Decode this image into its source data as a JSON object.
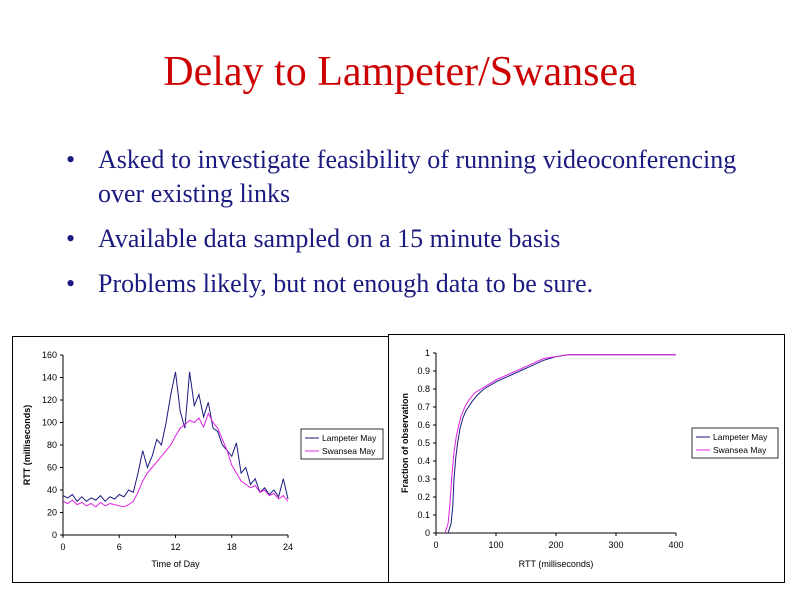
{
  "slide": {
    "title": "Delay to Lampeter/Swansea",
    "bullets": [
      "Asked to investigate feasibility of running videoconferencing over existing links",
      "Available data sampled on a 15 minute basis",
      "Problems likely, but not enough data to be sure."
    ],
    "bullet_symbol": "•"
  },
  "colors": {
    "title": "#cc0000",
    "text": "#1a1a80",
    "lampeter": "#1a1a80",
    "swansea": "#e020e0"
  },
  "chart_data": [
    {
      "type": "line",
      "title": "",
      "xlabel": "Time of Day",
      "ylabel": "RTT (milliseconds)",
      "xlim": [
        0,
        24
      ],
      "ylim": [
        0,
        160
      ],
      "xticks": [
        0,
        6,
        12,
        18,
        24
      ],
      "xtick_labels": [
        "0",
        "6",
        "12",
        "18",
        "24"
      ],
      "yticks": [
        0,
        20,
        40,
        60,
        80,
        100,
        120,
        140,
        160
      ],
      "ytick_labels": [
        "0",
        "20",
        "40",
        "60",
        "80",
        "100",
        "120",
        "140",
        "160"
      ],
      "grid": false,
      "legend": "right",
      "series": [
        {
          "name": "Lampeter May",
          "color": "#1a1a80",
          "x": [
            0,
            0.5,
            1,
            1.5,
            2,
            2.5,
            3,
            3.5,
            4,
            4.5,
            5,
            5.5,
            6,
            6.5,
            7,
            7.5,
            8,
            8.5,
            9,
            9.5,
            10,
            10.5,
            11,
            11.5,
            12,
            12.5,
            13,
            13.5,
            14,
            14.5,
            15,
            15.5,
            16,
            16.5,
            17,
            17.5,
            18,
            18.5,
            19,
            19.5,
            20,
            20.5,
            21,
            21.5,
            22,
            22.5,
            23,
            23.5,
            24
          ],
          "values": [
            35,
            33,
            36,
            30,
            34,
            30,
            33,
            31,
            35,
            30,
            34,
            32,
            36,
            34,
            40,
            38,
            55,
            75,
            60,
            70,
            85,
            80,
            100,
            125,
            145,
            110,
            95,
            145,
            115,
            125,
            105,
            118,
            95,
            92,
            80,
            75,
            70,
            82,
            55,
            60,
            45,
            50,
            38,
            42,
            36,
            40,
            34,
            50,
            32
          ]
        },
        {
          "name": "Swansea May",
          "color": "#e020e0",
          "x": [
            0,
            0.5,
            1,
            1.5,
            2,
            2.5,
            3,
            3.5,
            4,
            4.5,
            5,
            5.5,
            6,
            6.5,
            7,
            7.5,
            8,
            8.5,
            9,
            9.5,
            10,
            10.5,
            11,
            11.5,
            12,
            12.5,
            13,
            13.5,
            14,
            14.5,
            15,
            15.5,
            16,
            16.5,
            17,
            17.5,
            18,
            18.5,
            19,
            19.5,
            20,
            20.5,
            21,
            21.5,
            22,
            22.5,
            23,
            23.5,
            24
          ],
          "values": [
            30,
            28,
            31,
            27,
            29,
            26,
            28,
            25,
            29,
            26,
            28,
            27,
            26,
            25,
            27,
            30,
            38,
            48,
            55,
            60,
            65,
            70,
            75,
            80,
            88,
            95,
            98,
            102,
            100,
            104,
            96,
            108,
            100,
            95,
            85,
            75,
            62,
            55,
            48,
            45,
            42,
            44,
            38,
            40,
            35,
            37,
            32,
            35,
            30
          ]
        }
      ]
    },
    {
      "type": "line",
      "title": "",
      "xlabel": "RTT (milliseconds)",
      "ylabel": "Fraction of observation",
      "xlim": [
        0,
        400
      ],
      "ylim": [
        0,
        1
      ],
      "xticks": [
        0,
        100,
        200,
        300,
        400
      ],
      "xtick_labels": [
        "0",
        "100",
        "200",
        "300",
        "400"
      ],
      "yticks": [
        0,
        0.1,
        0.2,
        0.3,
        0.4,
        0.5,
        0.6,
        0.7,
        0.8,
        0.9,
        1
      ],
      "ytick_labels": [
        "0",
        "0.1",
        "0.2",
        "0.3",
        "0.4",
        "0.5",
        "0.6",
        "0.7",
        "0.8",
        "0.9",
        "1"
      ],
      "grid": false,
      "legend": "right",
      "series": [
        {
          "name": "Lampeter May",
          "color": "#1a1a80",
          "x": [
            20,
            25,
            28,
            30,
            33,
            36,
            40,
            45,
            50,
            60,
            70,
            80,
            100,
            120,
            140,
            160,
            180,
            200,
            220,
            240,
            260,
            300,
            400
          ],
          "values": [
            0,
            0.05,
            0.15,
            0.3,
            0.42,
            0.5,
            0.58,
            0.64,
            0.68,
            0.73,
            0.77,
            0.8,
            0.84,
            0.87,
            0.9,
            0.93,
            0.96,
            0.98,
            0.99,
            0.99,
            0.99,
            0.99,
            0.99
          ]
        },
        {
          "name": "Swansea May",
          "color": "#e020e0",
          "x": [
            15,
            20,
            23,
            26,
            30,
            34,
            38,
            42,
            48,
            55,
            65,
            80,
            100,
            120,
            140,
            160,
            180,
            200,
            220,
            240,
            260,
            300,
            400
          ],
          "values": [
            0,
            0.05,
            0.15,
            0.3,
            0.45,
            0.54,
            0.6,
            0.65,
            0.7,
            0.74,
            0.78,
            0.81,
            0.85,
            0.88,
            0.91,
            0.94,
            0.97,
            0.98,
            0.99,
            0.99,
            0.99,
            0.99,
            0.99
          ]
        }
      ]
    }
  ]
}
